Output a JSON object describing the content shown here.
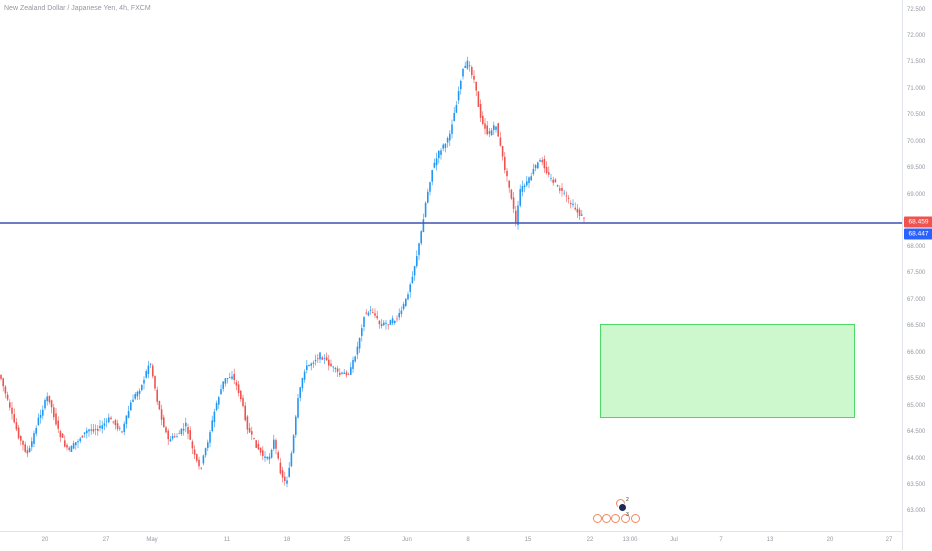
{
  "symbol": {
    "title": "New Zealand Dollar / Japanese Yen, 4h, FXCM"
  },
  "colors": {
    "bull": "#2196f3",
    "bear": "#ef5350",
    "hline": "#3f51b5",
    "badge_current": "#ef5350",
    "badge_line": "#2962ff"
  },
  "price_axis": {
    "ticks": [
      "72.500",
      "72.000",
      "71.500",
      "71.000",
      "70.500",
      "70.000",
      "69.500",
      "69.000",
      "68.000",
      "67.500",
      "67.000",
      "66.500",
      "66.000",
      "65.500",
      "65.000",
      "64.500",
      "64.000",
      "63.500",
      "63.000"
    ],
    "badge_current": "68.459",
    "badge_line": "68.447"
  },
  "time_axis": {
    "ticks": [
      "20",
      "27",
      "May",
      "11",
      "18",
      "25",
      "Jun",
      "8",
      "15",
      "22",
      "13:00",
      "Jul",
      "7",
      "13",
      "20",
      "27"
    ]
  },
  "events": {
    "count_top": "2",
    "count_bottom": "3"
  }
}
